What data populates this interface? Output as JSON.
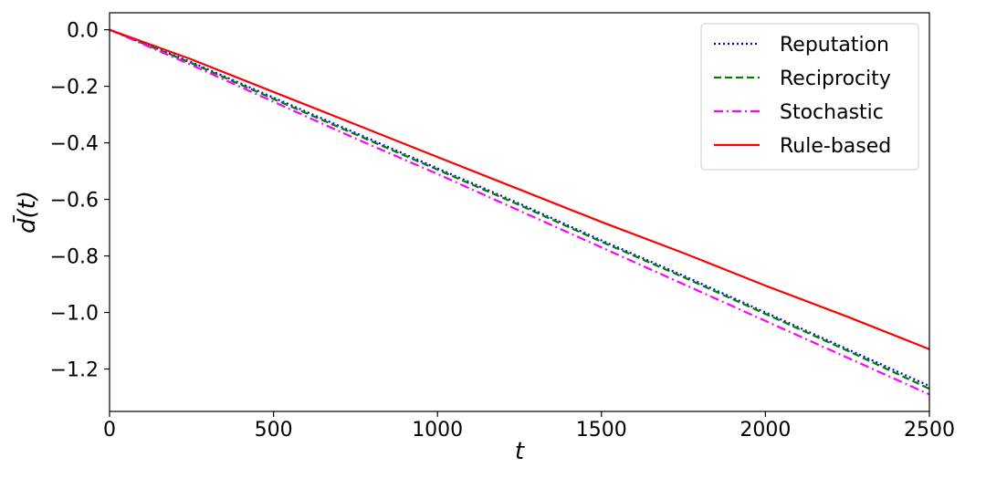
{
  "chart_data": {
    "type": "line",
    "title": "",
    "xlabel": "t",
    "ylabel": "d̄(t)",
    "xlim": [
      0,
      2500
    ],
    "ylim": [
      -1.35,
      0.06
    ],
    "xticks": [
      0,
      500,
      1000,
      1500,
      2000,
      2500
    ],
    "xtick_labels": [
      "0",
      "500",
      "1000",
      "1500",
      "2000",
      "2500"
    ],
    "yticks": [
      0.0,
      -0.2,
      -0.4,
      -0.6,
      -0.8,
      -1.0,
      -1.2
    ],
    "ytick_labels": [
      "0.0",
      "−0.2",
      "−0.4",
      "−0.6",
      "−0.8",
      "−1.0",
      "−1.2"
    ],
    "grid": false,
    "legend_position": "top-right",
    "series": [
      {
        "name": "Reputation",
        "color": "#0000ff",
        "style": "dotted",
        "x": [
          0,
          250,
          500,
          750,
          1000,
          1250,
          1500,
          1750,
          2000,
          2250,
          2500
        ],
        "y": [
          0,
          -0.115,
          -0.24,
          -0.365,
          -0.49,
          -0.615,
          -0.745,
          -0.87,
          -1.0,
          -1.13,
          -1.26
        ]
      },
      {
        "name": "Reciprocity",
        "color": "#008000",
        "style": "dashed",
        "x": [
          0,
          250,
          500,
          750,
          1000,
          1250,
          1500,
          1750,
          2000,
          2250,
          2500
        ],
        "y": [
          0,
          -0.118,
          -0.245,
          -0.37,
          -0.495,
          -0.62,
          -0.75,
          -0.875,
          -1.005,
          -1.135,
          -1.27
        ]
      },
      {
        "name": "Stochastic",
        "color": "#ff00ff",
        "style": "dashdot",
        "x": [
          0,
          250,
          500,
          750,
          1000,
          1250,
          1500,
          1750,
          2000,
          2250,
          2500
        ],
        "y": [
          0,
          -0.125,
          -0.255,
          -0.385,
          -0.51,
          -0.64,
          -0.77,
          -0.9,
          -1.03,
          -1.16,
          -1.29
        ]
      },
      {
        "name": "Rule-based",
        "color": "#ff0000",
        "style": "solid",
        "x": [
          0,
          250,
          500,
          750,
          1000,
          1250,
          1500,
          1750,
          2000,
          2250,
          2500
        ],
        "y": [
          0,
          -0.105,
          -0.22,
          -0.335,
          -0.45,
          -0.565,
          -0.68,
          -0.79,
          -0.905,
          -1.015,
          -1.13
        ]
      }
    ]
  }
}
